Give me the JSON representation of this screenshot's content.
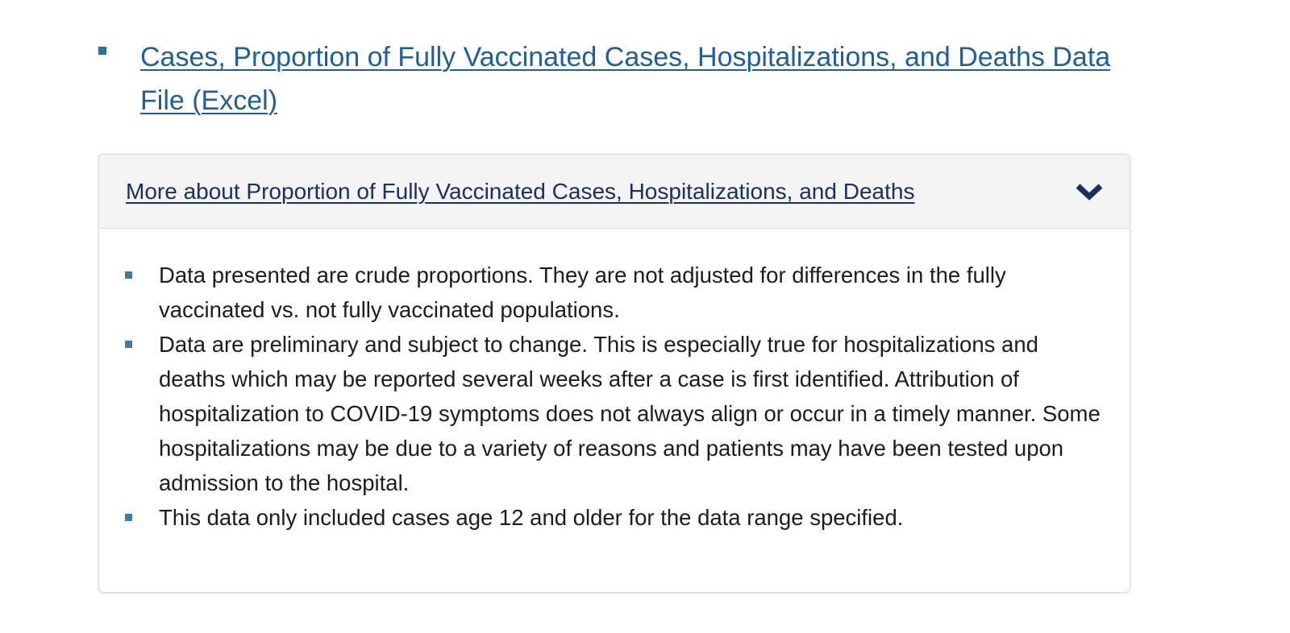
{
  "files": [
    {
      "label": "Cases, Proportion of Fully Vaccinated Cases, Hospitalizations, and Deaths Data File (Excel)"
    }
  ],
  "accordion": {
    "title": "More about Proportion of Fully Vaccinated Cases, Hospitalizations, and Deaths",
    "expanded": true,
    "toggle_icon": "chevron-down-icon",
    "items": [
      "Data presented are crude proportions. They are not adjusted for differences in the fully vaccinated vs. not fully vaccinated populations.",
      "Data are preliminary and subject to change. This is especially true for hospitalizations and deaths which may be reported several weeks after a case is first identified. Attribution of hospitalization to COVID-19 symptoms does not always align or occur in a timely manner. Some hospitalizations may be due to a variety of reasons and patients may have been tested upon admission to the hospital.",
      "This data only included cases age 12 and older for the data range specified."
    ]
  },
  "colors": {
    "link": "#205e96",
    "accordion_title": "#1a2f63",
    "bullet": "#3a7ca5",
    "header_bg": "#f4f4f4"
  }
}
